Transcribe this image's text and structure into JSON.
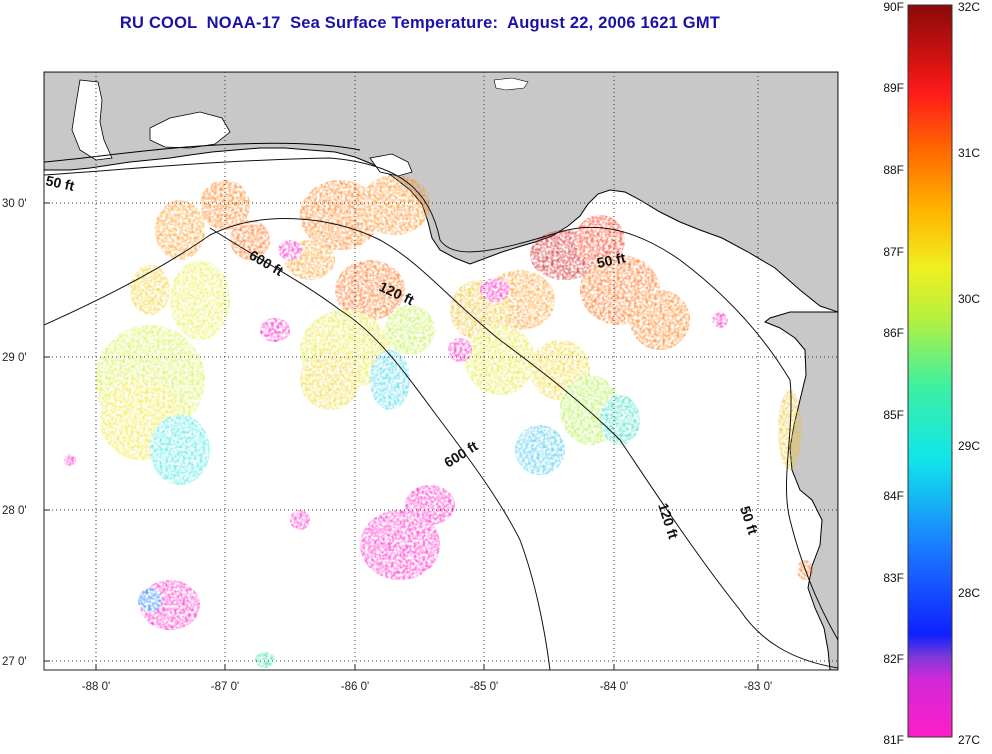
{
  "title": "RU COOL  NOAA-17  Sea Surface Temperature:  August 22, 2006 1621 GMT",
  "map": {
    "lon_labels": [
      "-88 0'",
      "-87 0'",
      "-86 0'",
      "-85 0'",
      "-84 0'",
      "-83 0'"
    ],
    "lat_labels": [
      "30 0'",
      "29 0'",
      "28 0'",
      "27 0'"
    ],
    "contour_labels": [
      {
        "id": "label-50ft-west",
        "text": "50 ft"
      },
      {
        "id": "label-600ft-north",
        "text": "600 ft"
      },
      {
        "id": "label-120ft-central",
        "text": "120 ft"
      },
      {
        "id": "label-50ft-east",
        "text": "50 ft"
      },
      {
        "id": "label-600ft-south",
        "text": "600 ft"
      },
      {
        "id": "label-120ft-south",
        "text": "120 ft"
      },
      {
        "id": "label-50ft-south",
        "text": "50 ft"
      }
    ],
    "colors": {
      "land": "#c8c8c8",
      "ocean_no_data": "#ffffff",
      "grid": "#333333"
    }
  },
  "colorbar": {
    "fahrenheit_labels": [
      "90F",
      "89F",
      "88F",
      "87F",
      "86F",
      "85F",
      "84F",
      "83F",
      "82F",
      "81F"
    ],
    "celsius_labels": [
      "32C",
      "31C",
      "30C",
      "29C",
      "28C",
      "27C"
    ],
    "gradient": [
      "#ff1ec8",
      "#9a3ad8",
      "#1020ff",
      "#1a7cff",
      "#10e6ea",
      "#3ef0a0",
      "#b4f040",
      "#f0f020",
      "#ffb400",
      "#ff6a00",
      "#ff1a1a",
      "#c41010",
      "#8a0a0a"
    ]
  }
}
